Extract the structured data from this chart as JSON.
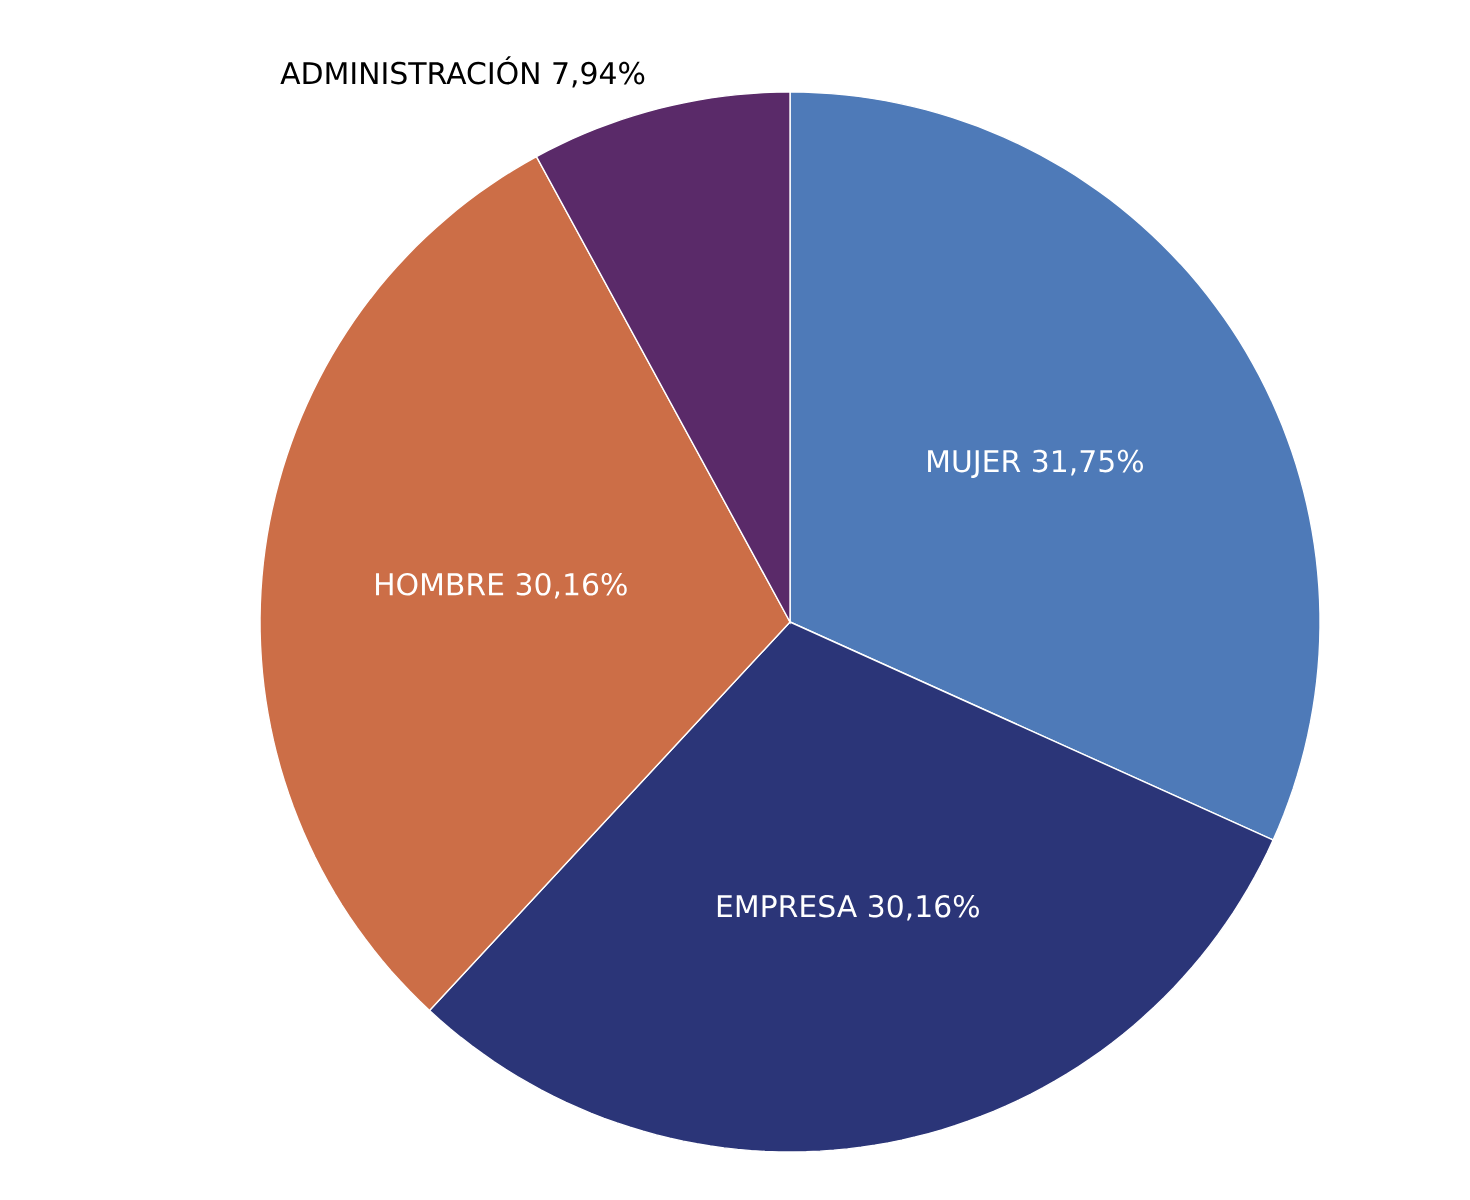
{
  "chart_data": {
    "type": "pie",
    "categories": [
      "MUJER",
      "EMPRESA",
      "HOMBRE",
      "ADMINISTRACIÓN"
    ],
    "values": [
      31.75,
      30.16,
      30.16,
      7.94
    ],
    "value_labels": [
      "31,75%",
      "30,16%",
      "30,16%",
      "7,94%"
    ],
    "colors": [
      "#4e7ab8",
      "#2b3578",
      "#cc6e47",
      "#5a2a69"
    ]
  }
}
